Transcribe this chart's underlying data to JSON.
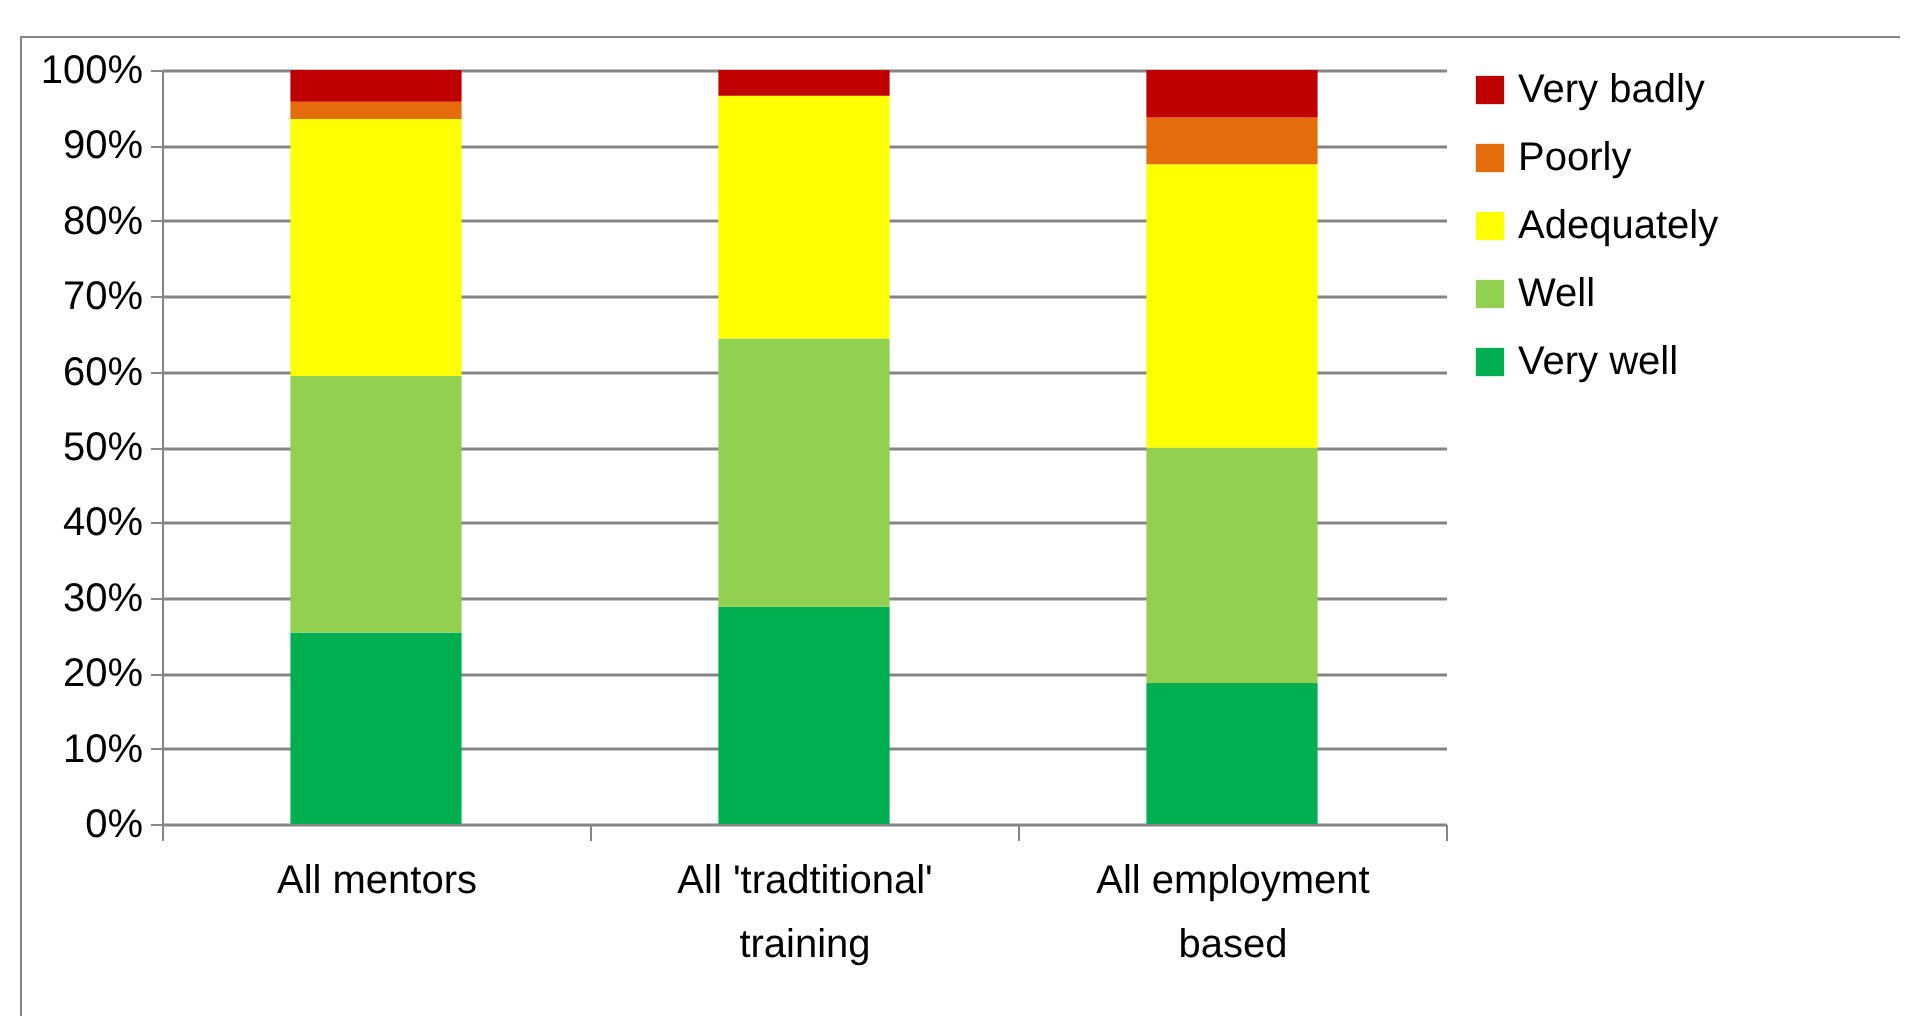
{
  "chart_data": {
    "type": "bar",
    "stacked": true,
    "categories": [
      "All mentors",
      "All 'tradtitional' training",
      "All employment based"
    ],
    "series": [
      {
        "name": "Very well",
        "color": "#00b050",
        "values": [
          25.4,
          28.8,
          18.7
        ]
      },
      {
        "name": "Well",
        "color": "#92d050",
        "values": [
          34.0,
          35.6,
          31.2
        ]
      },
      {
        "name": "Adequately",
        "color": "#ffff00",
        "values": [
          34.1,
          32.2,
          37.6
        ]
      },
      {
        "name": "Poorly",
        "color": "#e46c0a",
        "values": [
          2.3,
          0,
          6.2
        ]
      },
      {
        "name": "Very badly",
        "color": "#c00000",
        "values": [
          4.2,
          3.4,
          6.3
        ]
      }
    ],
    "ylim": [
      0,
      100
    ],
    "yticks": [
      {
        "value": 0,
        "label": "0%"
      },
      {
        "value": 10,
        "label": "10%"
      },
      {
        "value": 20,
        "label": "20%"
      },
      {
        "value": 30,
        "label": "30%"
      },
      {
        "value": 40,
        "label": "40%"
      },
      {
        "value": 50,
        "label": "50%"
      },
      {
        "value": 60,
        "label": "60%"
      },
      {
        "value": 70,
        "label": "70%"
      },
      {
        "value": 80,
        "label": "80%"
      },
      {
        "value": 90,
        "label": "90%"
      },
      {
        "value": 100,
        "label": "100%"
      }
    ],
    "grid": "y",
    "legend": "right"
  }
}
